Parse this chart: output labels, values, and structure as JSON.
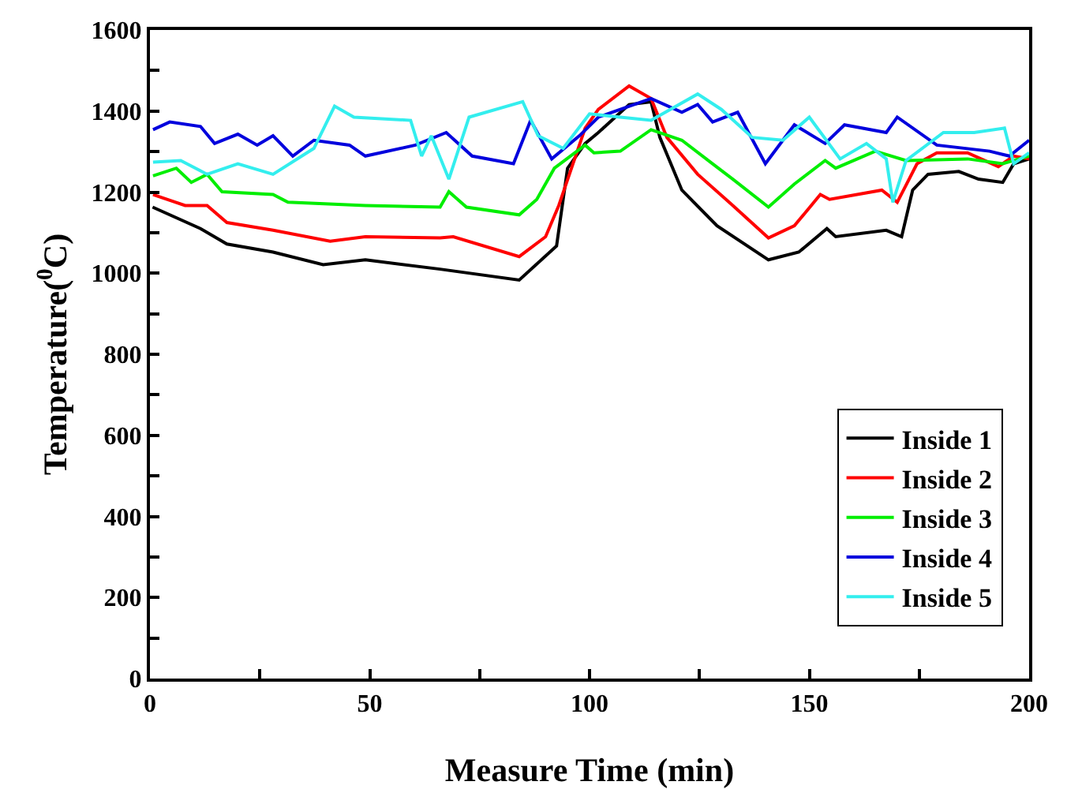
{
  "chart_data": {
    "type": "line",
    "xlabel": "Measure Time (min)",
    "ylabel": "Temperature($^{0}$C)",
    "xlim": [
      0,
      200
    ],
    "ylim": [
      0,
      1600
    ],
    "xticks": [
      0,
      {
        "value": 25,
        "label": null
      },
      50,
      {
        "value": 75,
        "label": null
      },
      100,
      {
        "value": 125,
        "label": null
      },
      150,
      {
        "value": 175,
        "label": null
      },
      200
    ],
    "yticks": [
      0,
      {
        "value": 100,
        "label": null
      },
      200,
      {
        "value": 300,
        "label": null
      },
      400,
      {
        "value": 500,
        "label": null
      },
      600,
      {
        "value": 700,
        "label": null
      },
      800,
      {
        "value": 900,
        "label": null
      },
      1000,
      {
        "value": 1100,
        "label": null
      },
      1200,
      {
        "value": 1300,
        "label": null
      },
      1400,
      {
        "value": 1500,
        "label": null
      },
      1600
    ],
    "grid": false,
    "legend": "bottom right",
    "marker": "none",
    "line_style": "solid",
    "series": [
      {
        "name": "Inside 1",
        "color": "#000000",
        "x": [
          0.6,
          11.5,
          17.5,
          28,
          39.4,
          49,
          66,
          84,
          92.5,
          95,
          99,
          102,
          109,
          114,
          116,
          121,
          129,
          140.7,
          147.6,
          154,
          156,
          167.5,
          171,
          173.5,
          177,
          184,
          188.5,
          194,
          196.5,
          200
        ],
        "values": [
          1163,
          1110,
          1072,
          1052,
          1021,
          1033,
          1010,
          983,
          1067,
          1259,
          1320,
          1347,
          1416,
          1423,
          1335,
          1205,
          1117,
          1033,
          1052,
          1110,
          1090,
          1106,
          1090,
          1205,
          1244,
          1251,
          1232,
          1224,
          1270,
          1282
        ]
      },
      {
        "name": "Inside 2",
        "color": "#ff0000",
        "x": [
          0.7,
          8,
          13,
          17.5,
          28,
          41,
          49,
          66,
          69,
          84,
          90,
          93,
          99,
          102,
          109,
          114,
          117.6,
          124.6,
          132.6,
          140.7,
          146.6,
          152.5,
          154.6,
          166.5,
          170,
          174.5,
          179,
          186,
          193,
          196.5,
          200
        ],
        "values": [
          1194,
          1167,
          1167,
          1125,
          1106,
          1079,
          1090,
          1087,
          1090,
          1041,
          1090,
          1167,
          1358,
          1404,
          1462,
          1431,
          1335,
          1244,
          1167,
          1087,
          1117,
          1194,
          1182,
          1205,
          1175,
          1270,
          1297,
          1297,
          1263,
          1289,
          1282
        ]
      },
      {
        "name": "Inside 3",
        "color": "#00ee00",
        "x": [
          0.7,
          6,
          9.4,
          13,
          16.4,
          28,
          31.4,
          49,
          66,
          68,
          72,
          84,
          88,
          92,
          99,
          101,
          107,
          114,
          121,
          128,
          132.6,
          140.7,
          146.6,
          153.6,
          156,
          165,
          172,
          186,
          194,
          200
        ],
        "values": [
          1240,
          1259,
          1224,
          1244,
          1201,
          1194,
          1175,
          1167,
          1163,
          1201,
          1163,
          1144,
          1182,
          1259,
          1316,
          1297,
          1301,
          1354,
          1328,
          1270,
          1232,
          1163,
          1220,
          1278,
          1259,
          1301,
          1278,
          1282,
          1270,
          1289
        ]
      },
      {
        "name": "Inside 4",
        "color": "#0000dd",
        "x": [
          0.7,
          4.5,
          11.5,
          14.7,
          20,
          24.4,
          28,
          32.5,
          37.3,
          45.4,
          49,
          60.4,
          67.4,
          73.3,
          82.7,
          86.6,
          91.4,
          97.7,
          102,
          114,
          121,
          124.6,
          128,
          133.7,
          140,
          146.6,
          153.6,
          158,
          167.5,
          170,
          179,
          191,
          195.5,
          200
        ],
        "values": [
          1354,
          1373,
          1362,
          1320,
          1343,
          1316,
          1339,
          1289,
          1328,
          1316,
          1289,
          1316,
          1347,
          1289,
          1270,
          1377,
          1282,
          1339,
          1385,
          1431,
          1397,
          1416,
          1373,
          1397,
          1270,
          1366,
          1320,
          1366,
          1347,
          1385,
          1316,
          1301,
          1289,
          1328
        ]
      },
      {
        "name": "Inside 5",
        "color": "#33eeee",
        "x": [
          0.7,
          7,
          13,
          20,
          28,
          37.3,
          42,
          46.4,
          59.3,
          61.8,
          64,
          68,
          72.6,
          84.8,
          88.3,
          94,
          100,
          107,
          114,
          124.6,
          130,
          137,
          144,
          150,
          157,
          163,
          167.5,
          169,
          172,
          180.5,
          187.5,
          194.4,
          196.5,
          200
        ],
        "values": [
          1274,
          1278,
          1244,
          1270,
          1244,
          1308,
          1412,
          1385,
          1377,
          1289,
          1339,
          1232,
          1385,
          1423,
          1339,
          1308,
          1393,
          1385,
          1377,
          1442,
          1404,
          1335,
          1328,
          1385,
          1282,
          1320,
          1282,
          1175,
          1278,
          1347,
          1347,
          1358,
          1270,
          1297
        ]
      }
    ]
  }
}
